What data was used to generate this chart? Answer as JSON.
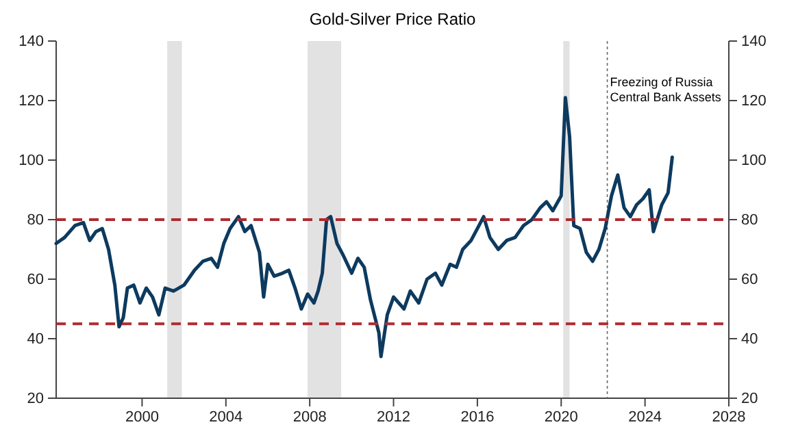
{
  "chart_data": {
    "type": "line",
    "title": "Gold-Silver Price Ratio",
    "series": [
      {
        "color": "#0d3a5f",
        "x": [
          1995.9,
          1996.3,
          1996.8,
          1997.2,
          1997.5,
          1997.8,
          1998.1,
          1998.4,
          1998.7,
          1998.9,
          1999.1,
          1999.3,
          1999.6,
          1999.9,
          2000.2,
          2000.5,
          2000.8,
          2001.1,
          2001.5,
          2002.0,
          2002.5,
          2002.9,
          2003.3,
          2003.6,
          2003.9,
          2004.2,
          2004.6,
          2004.9,
          2005.2,
          2005.6,
          2005.8,
          2006.0,
          2006.3,
          2006.7,
          2007.0,
          2007.3,
          2007.6,
          2007.9,
          2008.2,
          2008.4,
          2008.6,
          2008.8,
          2009.0,
          2009.3,
          2009.6,
          2010.0,
          2010.3,
          2010.6,
          2010.9,
          2011.3,
          2011.4,
          2011.7,
          2012.0,
          2012.5,
          2012.8,
          2013.2,
          2013.6,
          2014.0,
          2014.3,
          2014.7,
          2015.0,
          2015.3,
          2015.7,
          2016.0,
          2016.3,
          2016.6,
          2017.0,
          2017.4,
          2017.8,
          2018.2,
          2018.6,
          2019.0,
          2019.3,
          2019.6,
          2020.0,
          2020.2,
          2020.4,
          2020.6,
          2020.9,
          2021.2,
          2021.5,
          2021.8,
          2022.1,
          2022.4,
          2022.7,
          2023.0,
          2023.3,
          2023.6,
          2023.9,
          2024.2,
          2024.4,
          2024.8,
          2025.1,
          2025.3
        ],
        "values": [
          72,
          74,
          78,
          79,
          73,
          76,
          77,
          70,
          58,
          44,
          47,
          57,
          58,
          52,
          57,
          54,
          48,
          57,
          56,
          58,
          63,
          66,
          67,
          64,
          72,
          77,
          81,
          76,
          78,
          69,
          54,
          65,
          61,
          62,
          63,
          57,
          50,
          55,
          52,
          56,
          62,
          80,
          81,
          72,
          68,
          62,
          67,
          64,
          53,
          42,
          34,
          48,
          54,
          50,
          56,
          52,
          60,
          62,
          58,
          65,
          64,
          70,
          73,
          77,
          81,
          74,
          70,
          73,
          74,
          78,
          80,
          84,
          86,
          83,
          88,
          121,
          108,
          78,
          77,
          69,
          66,
          70,
          77,
          88,
          95,
          84,
          81,
          85,
          87,
          90,
          76,
          85,
          89,
          101
        ]
      }
    ],
    "xlim": [
      1995.9,
      2028
    ],
    "xticks": [
      2000,
      2004,
      2008,
      2012,
      2016,
      2020,
      2024,
      2028
    ],
    "ylim": [
      20,
      140
    ],
    "yticks": [
      20,
      40,
      60,
      80,
      100,
      120,
      140
    ],
    "y2lim": [
      20,
      140
    ],
    "y2ticks": [
      20,
      40,
      60,
      80,
      100,
      120,
      140
    ],
    "bands": [
      {
        "axis": "x",
        "from": 2001.2,
        "to": 2001.9,
        "color": "#e2e2e2"
      },
      {
        "axis": "x",
        "from": 2007.9,
        "to": 2009.5,
        "color": "#e2e2e2"
      },
      {
        "axis": "x",
        "from": 2020.1,
        "to": 2020.4,
        "color": "#e2e2e2"
      }
    ],
    "ref_lines": [
      {
        "axis": "y",
        "value": 80,
        "color": "#b02a30",
        "line_style": "dashed"
      },
      {
        "axis": "y",
        "value": 45,
        "color": "#b02a30",
        "line_style": "dashed"
      },
      {
        "axis": "x",
        "value": 2022.2,
        "color": "#666666",
        "line_style": "dotted",
        "label": "Freezing of Russia\nCentral Bank Assets"
      }
    ],
    "grid": false
  }
}
